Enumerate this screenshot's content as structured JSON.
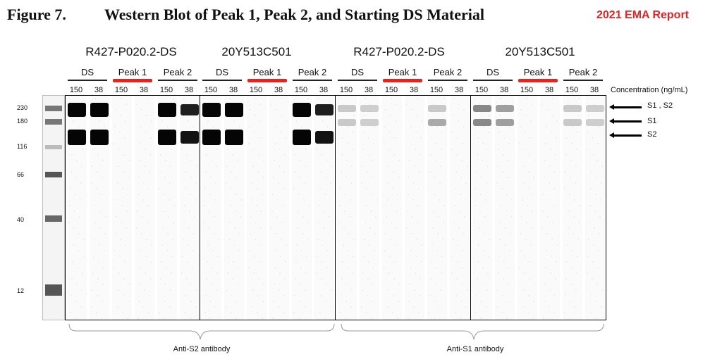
{
  "figure": {
    "label": "Figure 7.",
    "title": "Western Blot of Peak 1, Peak 2, and Starting DS Material"
  },
  "report": "2021 EMA Report",
  "groups": [
    {
      "name": "R427-P020.2-DS",
      "antibody": "Anti-S2"
    },
    {
      "name": "20Y513C501",
      "antibody": "Anti-S2"
    },
    {
      "name": "R427-P020.2-DS",
      "antibody": "Anti-S1"
    },
    {
      "name": "20Y513C501",
      "antibody": "Anti-S1"
    }
  ],
  "samples": [
    "DS",
    "Peak 1",
    "Peak 2"
  ],
  "concentrations": [
    "150",
    "38"
  ],
  "concentration_label": "Concentration (ng/mL)",
  "ladder_mw": [
    "230",
    "180",
    "116",
    "66",
    "40",
    "12"
  ],
  "band_annotations": [
    "S1 , S2",
    "S1",
    "S2"
  ],
  "antibody_labels": [
    "Anti-S2  antibody",
    "Anti-S1  antibody"
  ],
  "colors": {
    "highlight": "#e8231b",
    "report": "#e02424"
  }
}
